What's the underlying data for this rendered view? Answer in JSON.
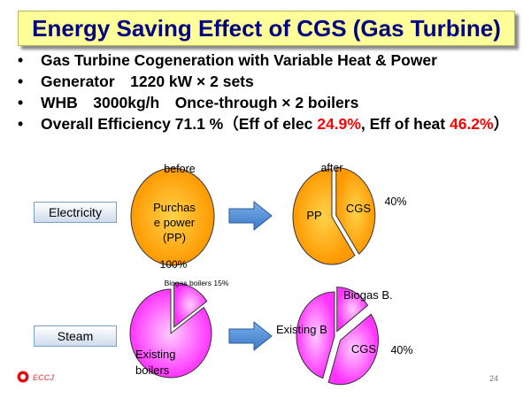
{
  "title": "Energy Saving Effect of CGS (Gas Turbine)",
  "bullets": [
    {
      "text": "Gas Turbine Cogeneration with Variable Heat & Power"
    },
    {
      "text": "Generator　1220 kW × 2 sets"
    },
    {
      "text": "WHB　3000kg/h　Once-through × 2 boilers"
    },
    {
      "text_a": "Overall Efficiency 71.1 %（Eff of elec ",
      "red_a": "24.9%",
      "text_b": ", Eff of heat ",
      "red_b": "46.2%",
      "text_c": "）"
    }
  ],
  "rows": [
    {
      "label": "Electricity"
    },
    {
      "label": "Steam"
    }
  ],
  "chart_data": [
    {
      "type": "pie",
      "group": "Electricity",
      "title": "before",
      "slices": [
        {
          "label": "Purchase power (PP)",
          "value": 100
        }
      ],
      "annotations": [
        "100%"
      ],
      "colors": {
        "fill_center": "#ffd24a",
        "fill_edge": "#ff9900"
      }
    },
    {
      "type": "pie",
      "group": "Electricity",
      "title": "after",
      "slices": [
        {
          "label": "CGS",
          "value": 40
        },
        {
          "label": "PP",
          "value": 60
        }
      ],
      "annotations": [
        "40%"
      ],
      "colors": {
        "fill_center": "#ffd24a",
        "fill_edge": "#ff9900"
      }
    },
    {
      "type": "pie",
      "group": "Steam",
      "title": "",
      "slices": [
        {
          "label": "Biogas boilers",
          "value": 15
        },
        {
          "label": "Existing boilers",
          "value": 85
        }
      ],
      "annotations": [
        "Biogas boilers 15%"
      ],
      "colors": {
        "fill_center": "#ffccff",
        "fill_edge": "#ff33ff"
      }
    },
    {
      "type": "pie",
      "group": "Steam",
      "title": "",
      "slices": [
        {
          "label": "Biogas B.",
          "value": 15
        },
        {
          "label": "CGS",
          "value": 40
        },
        {
          "label": "Existing B.",
          "value": 45
        }
      ],
      "annotations": [
        "40%"
      ],
      "colors": {
        "fill_center": "#ffccff",
        "fill_edge": "#ff33ff"
      }
    }
  ],
  "labels": {
    "before": "before",
    "after": "after",
    "pp_line1": "Purchas",
    "pp_line2": "e power",
    "pp_line3": "(PP)",
    "pp_percent": "100%",
    "after_cgs": "CGS",
    "after_pp": "PP",
    "after_percent": "40%",
    "biogas_note": "Biogas boilers 15%",
    "existing_line1": "Existing",
    "existing_line2": "boilers",
    "biogas_b": "Biogas B.",
    "existing_b": "Existing B",
    "steam_cgs": "CGS",
    "steam_percent": "40%"
  },
  "footer": {
    "logo_text": "ECCJ",
    "page_number": "24"
  }
}
